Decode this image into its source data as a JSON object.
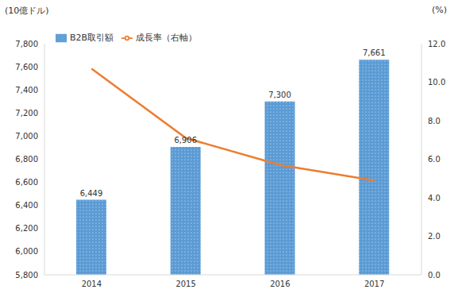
{
  "chart_data": {
    "type": "bar",
    "categories": [
      "2014",
      "2015",
      "2016",
      "2017"
    ],
    "ylabel": "(10億ドル)",
    "y2label": "(%)",
    "series": [
      {
        "name": "B2B取引額",
        "type": "bar",
        "color": "#5b9bd5",
        "values": [
          6449,
          6906,
          7300,
          7661
        ],
        "data_labels": true,
        "value_labels": [
          "6,449",
          "6,906",
          "7,300",
          "7,661"
        ]
      },
      {
        "name": "成長率（右軸）",
        "type": "line",
        "axis": "y2",
        "color": "#ed7d31",
        "values": [
          10.7,
          7.1,
          5.7,
          4.9
        ]
      }
    ],
    "ylim": [
      5800,
      7800
    ],
    "yticks": [
      {
        "value": 5800,
        "label": "5,800"
      },
      {
        "value": 6000,
        "label": "6,000"
      },
      {
        "value": 6200,
        "label": "6,200"
      },
      {
        "value": 6400,
        "label": "6,400"
      },
      {
        "value": 6600,
        "label": "6,600"
      },
      {
        "value": 6800,
        "label": "6,800"
      },
      {
        "value": 7000,
        "label": "7,000"
      },
      {
        "value": 7200,
        "label": "7,200"
      },
      {
        "value": 7400,
        "label": "7,400"
      },
      {
        "value": 7600,
        "label": "7,600"
      },
      {
        "value": 7800,
        "label": "7,800"
      }
    ],
    "y2lim": [
      0,
      12
    ],
    "y2ticks": [
      {
        "value": 0,
        "label": "0.0"
      },
      {
        "value": 2,
        "label": "2.0"
      },
      {
        "value": 4,
        "label": "4.0"
      },
      {
        "value": 6,
        "label": "6.0"
      },
      {
        "value": 8,
        "label": "8.0"
      },
      {
        "value": 10,
        "label": "10.0"
      },
      {
        "value": 12,
        "label": "12.0"
      }
    ],
    "grid": false,
    "legend": "upper left"
  }
}
